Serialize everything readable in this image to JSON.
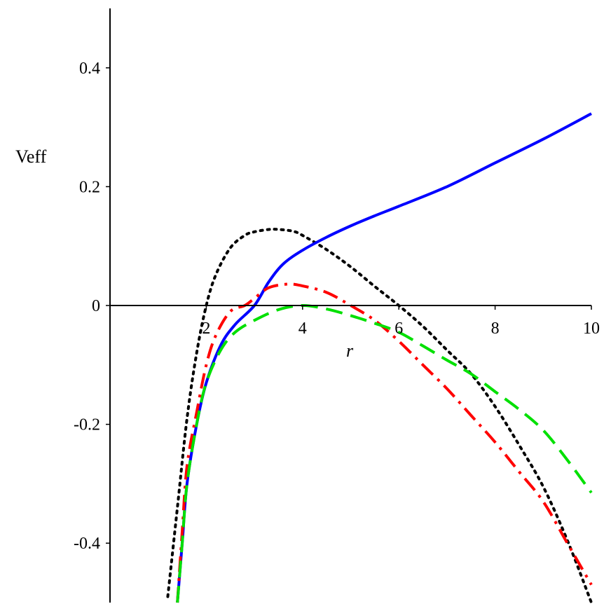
{
  "chart_data": {
    "type": "line",
    "title": "",
    "xlabel": "r",
    "ylabel": "Veff",
    "xlim": [
      0,
      10
    ],
    "ylim": [
      -0.5,
      0.5
    ],
    "x_ticks": [
      {
        "value": 2,
        "label": "2"
      },
      {
        "value": 4,
        "label": "4"
      },
      {
        "value": 6,
        "label": "6"
      },
      {
        "value": 8,
        "label": "8"
      },
      {
        "value": 10,
        "label": "10"
      }
    ],
    "y_ticks": [
      {
        "value": 0.4,
        "label": "0.4"
      },
      {
        "value": 0.2,
        "label": "0.2"
      },
      {
        "value": 0,
        "label": "0"
      },
      {
        "value": -0.2,
        "label": "-0.2"
      },
      {
        "value": -0.4,
        "label": "-0.4"
      }
    ],
    "grid": false,
    "legend": "none",
    "series": [
      {
        "style": "dotted",
        "color": "#000000",
        "points": [
          [
            1.2,
            -0.49
          ],
          [
            1.4,
            -0.34
          ],
          [
            1.6,
            -0.19
          ],
          [
            1.8,
            -0.08
          ],
          [
            2.0,
            0.0
          ],
          [
            2.2,
            0.052
          ],
          [
            2.5,
            0.097
          ],
          [
            2.8,
            0.118
          ],
          [
            3.0,
            0.124
          ],
          [
            3.3,
            0.128
          ],
          [
            3.5,
            0.128
          ],
          [
            3.8,
            0.125
          ],
          [
            4.0,
            0.118
          ],
          [
            4.5,
            0.094
          ],
          [
            5.0,
            0.065
          ],
          [
            5.5,
            0.032
          ],
          [
            6.0,
            0.0
          ],
          [
            6.5,
            -0.035
          ],
          [
            7.0,
            -0.075
          ],
          [
            7.5,
            -0.115
          ],
          [
            8.0,
            -0.17
          ],
          [
            8.5,
            -0.235
          ],
          [
            9.0,
            -0.305
          ],
          [
            9.5,
            -0.395
          ],
          [
            10.0,
            -0.5
          ]
        ]
      },
      {
        "style": "solid",
        "color": "#0000ff",
        "points": [
          [
            1.4,
            -0.5
          ],
          [
            1.5,
            -0.4
          ],
          [
            1.6,
            -0.3
          ],
          [
            1.8,
            -0.2
          ],
          [
            2.0,
            -0.13
          ],
          [
            2.3,
            -0.067
          ],
          [
            2.6,
            -0.032
          ],
          [
            3.0,
            0.0
          ],
          [
            3.3,
            0.04
          ],
          [
            3.6,
            0.07
          ],
          [
            4.0,
            0.093
          ],
          [
            4.5,
            0.115
          ],
          [
            5.0,
            0.134
          ],
          [
            5.5,
            0.151
          ],
          [
            6.0,
            0.167
          ],
          [
            7.0,
            0.2
          ],
          [
            8.0,
            0.24
          ],
          [
            9.0,
            0.28
          ],
          [
            10.0,
            0.323
          ]
        ]
      },
      {
        "style": "dashdot",
        "color": "#ff0000",
        "points": [
          [
            1.4,
            -0.5
          ],
          [
            1.5,
            -0.38
          ],
          [
            1.6,
            -0.27
          ],
          [
            1.8,
            -0.18
          ],
          [
            2.0,
            -0.1
          ],
          [
            2.2,
            -0.05
          ],
          [
            2.5,
            -0.01
          ],
          [
            2.8,
            0.0
          ],
          [
            3.0,
            0.012
          ],
          [
            3.3,
            0.03
          ],
          [
            3.7,
            0.036
          ],
          [
            4.0,
            0.033
          ],
          [
            4.5,
            0.022
          ],
          [
            5.0,
            0.0
          ],
          [
            5.5,
            -0.025
          ],
          [
            6.0,
            -0.06
          ],
          [
            6.5,
            -0.1
          ],
          [
            7.0,
            -0.14
          ],
          [
            7.5,
            -0.185
          ],
          [
            8.0,
            -0.23
          ],
          [
            8.5,
            -0.28
          ],
          [
            9.0,
            -0.33
          ],
          [
            9.5,
            -0.4
          ],
          [
            10.0,
            -0.47
          ]
        ]
      },
      {
        "style": "dashed",
        "color": "#00e000",
        "points": [
          [
            1.4,
            -0.5
          ],
          [
            1.5,
            -0.4
          ],
          [
            1.6,
            -0.3
          ],
          [
            1.8,
            -0.2
          ],
          [
            2.0,
            -0.13
          ],
          [
            2.3,
            -0.075
          ],
          [
            2.6,
            -0.045
          ],
          [
            3.0,
            -0.025
          ],
          [
            3.5,
            -0.007
          ],
          [
            4.0,
            0.0
          ],
          [
            4.5,
            -0.006
          ],
          [
            5.0,
            -0.017
          ],
          [
            5.5,
            -0.03
          ],
          [
            6.0,
            -0.045
          ],
          [
            6.5,
            -0.068
          ],
          [
            7.0,
            -0.092
          ],
          [
            7.5,
            -0.115
          ],
          [
            8.0,
            -0.145
          ],
          [
            8.5,
            -0.175
          ],
          [
            9.0,
            -0.21
          ],
          [
            9.5,
            -0.26
          ],
          [
            10.0,
            -0.315
          ]
        ]
      }
    ]
  }
}
